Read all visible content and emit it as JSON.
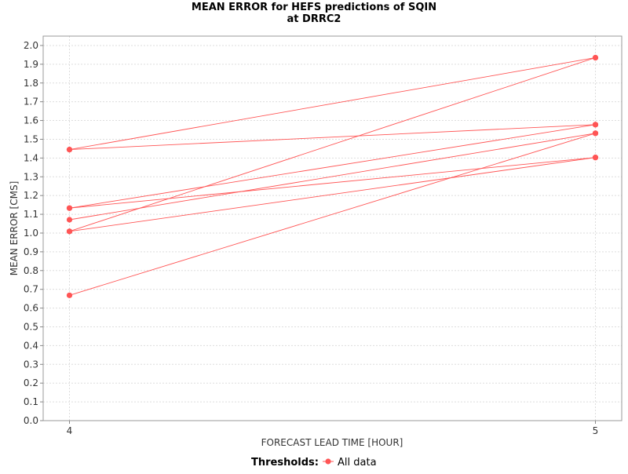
{
  "chart_data": {
    "type": "line",
    "title_line1": "MEAN ERROR for HEFS predictions of SQIN",
    "title_line2": "at DRRC2",
    "xlabel": "FORECAST LEAD TIME [HOUR]",
    "ylabel": "MEAN ERROR [CMS]",
    "x_ticks": [
      4,
      5
    ],
    "xlim": [
      3.95,
      5.05
    ],
    "ylim": [
      0.0,
      2.05
    ],
    "y_ticks": [
      0.0,
      0.1,
      0.2,
      0.3,
      0.4,
      0.5,
      0.6,
      0.7,
      0.8,
      0.9,
      1.0,
      1.1,
      1.2,
      1.3,
      1.4,
      1.5,
      1.6,
      1.7,
      1.8,
      1.9,
      2.0
    ],
    "grid": true,
    "legend_placement": "bottom-center",
    "legend_title": "Thresholds:",
    "legend_label": "All data",
    "color": "#ff5555",
    "segments": [
      {
        "x": [
          4,
          5
        ],
        "y": [
          1.445,
          1.935
        ]
      },
      {
        "x": [
          4,
          5
        ],
        "y": [
          1.445,
          1.578
        ]
      },
      {
        "x": [
          4,
          5
        ],
        "y": [
          1.133,
          1.578
        ]
      },
      {
        "x": [
          4,
          5
        ],
        "y": [
          1.133,
          1.403
        ]
      },
      {
        "x": [
          4,
          5
        ],
        "y": [
          1.071,
          1.532
        ]
      },
      {
        "x": [
          4,
          5
        ],
        "y": [
          1.009,
          1.935
        ]
      },
      {
        "x": [
          4,
          5
        ],
        "y": [
          1.009,
          1.403
        ]
      },
      {
        "x": [
          4,
          5
        ],
        "y": [
          0.668,
          1.532
        ]
      }
    ]
  }
}
